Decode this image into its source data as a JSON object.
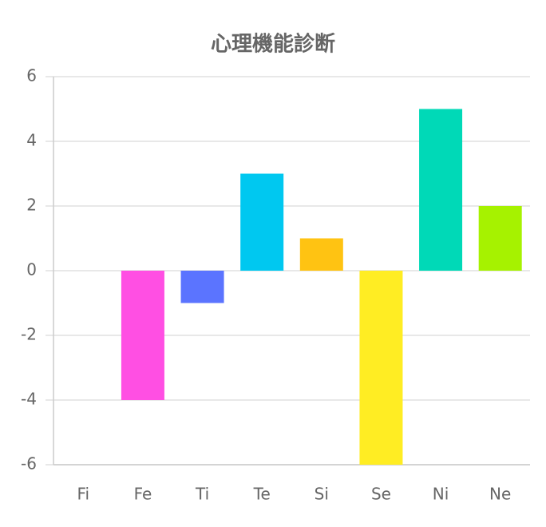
{
  "chart_data": {
    "type": "bar",
    "title": "心理機能診断",
    "categories": [
      "Fi",
      "Fe",
      "Ti",
      "Te",
      "Si",
      "Se",
      "Ni",
      "Ne"
    ],
    "values": [
      0,
      -4,
      -1,
      3,
      1,
      -6,
      5,
      2
    ],
    "colors": [
      "#ff5a5a",
      "#ff4fe3",
      "#5b74ff",
      "#00c8f0",
      "#ffc312",
      "#ffed23",
      "#00d9b7",
      "#a6f200"
    ],
    "ylim": [
      -6,
      6
    ],
    "yticks": [
      -6,
      -4,
      -2,
      0,
      2,
      4,
      6
    ],
    "grid": true
  }
}
